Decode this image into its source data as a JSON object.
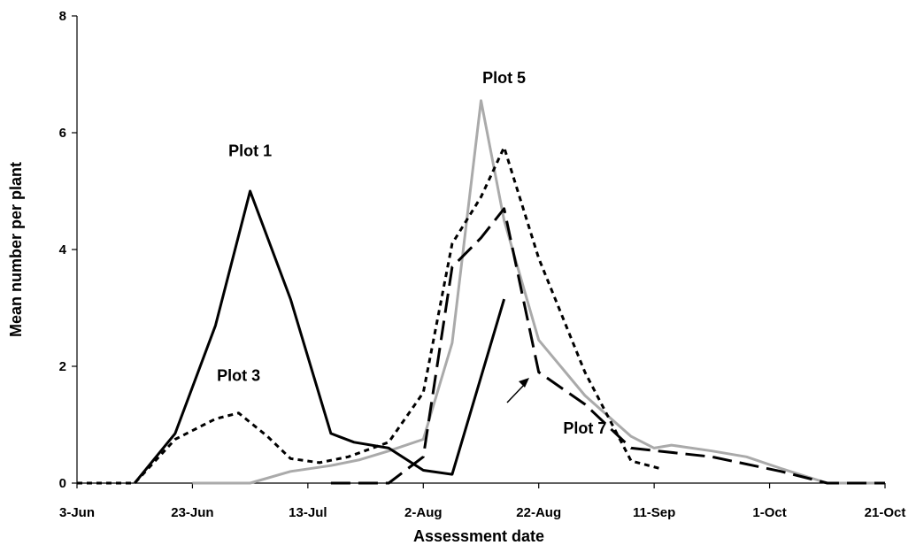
{
  "chart_data": {
    "type": "line",
    "title": "",
    "xlabel": "Assessment date",
    "ylabel": "Mean number per plant",
    "x_ticks": [
      "3-Jun",
      "23-Jun",
      "13-Jul",
      "2-Aug",
      "22-Aug",
      "11-Sep",
      "1-Oct",
      "21-Oct"
    ],
    "x_tick_days": [
      0,
      20,
      40,
      60,
      80,
      100,
      120,
      140
    ],
    "xlim_days": [
      0,
      140
    ],
    "x_origin": "3-Jun",
    "y_ticks": [
      "0",
      "2",
      "4",
      "6",
      "8"
    ],
    "ylim": [
      0,
      8
    ],
    "grid": false,
    "legend": "none",
    "series": [
      {
        "name": "Plot 1",
        "color": "#000000",
        "style": "solid",
        "x": [
          "13-Jun",
          "20-Jun",
          "27-Jun",
          "3-Jul",
          "10-Jul",
          "17-Jul",
          "21-Jul",
          "27-Jul",
          "2-Aug",
          "7-Aug",
          "16-Aug"
        ],
        "y": [
          0,
          0.85,
          2.7,
          5.0,
          3.15,
          0.85,
          0.7,
          0.6,
          0.22,
          0.15,
          3.15
        ]
      },
      {
        "name": "Plot 3",
        "color": "#000000",
        "style": "dotted",
        "x": [
          "3-Jun",
          "10-Jun",
          "13-Jun",
          "20-Jun",
          "27-Jun",
          "1-Jul",
          "6-Jul",
          "10-Jul",
          "15-Jul",
          "20-Jul",
          "27-Jul",
          "2-Aug",
          "7-Aug",
          "12-Aug",
          "16-Aug",
          "22-Aug",
          "30-Aug",
          "7-Sep",
          "12-Sep"
        ],
        "y": [
          0,
          0,
          0,
          0.75,
          1.1,
          1.2,
          0.8,
          0.42,
          0.35,
          0.45,
          0.7,
          1.55,
          4.1,
          4.9,
          5.75,
          3.85,
          1.9,
          0.38,
          0.25
        ]
      },
      {
        "name": "Plot 5",
        "color": "#aaaaaa",
        "style": "solid",
        "x": [
          "23-Jun",
          "3-Jul",
          "10-Jul",
          "17-Jul",
          "22-Jul",
          "27-Jul",
          "2-Aug",
          "7-Aug",
          "12-Aug",
          "16-Aug",
          "22-Aug",
          "30-Aug",
          "7-Sep",
          "11-Sep",
          "14-Sep",
          "21-Sep",
          "27-Sep",
          "3-Oct",
          "11-Oct",
          "21-Oct"
        ],
        "y": [
          0,
          0,
          0.2,
          0.3,
          0.4,
          0.55,
          0.75,
          2.4,
          6.55,
          4.5,
          2.45,
          1.5,
          0.8,
          0.6,
          0.65,
          0.55,
          0.45,
          0.25,
          0,
          0
        ]
      },
      {
        "name": "Plot 7",
        "color": "#000000",
        "style": "dashed",
        "x": [
          "17-Jul",
          "27-Jul",
          "2-Aug",
          "7-Aug",
          "12-Aug",
          "16-Aug",
          "22-Aug",
          "30-Aug",
          "7-Sep",
          "21-Sep",
          "3-Oct",
          "11-Oct",
          "21-Oct"
        ],
        "y": [
          0,
          0,
          0.45,
          3.7,
          4.2,
          4.7,
          1.9,
          1.35,
          0.6,
          0.45,
          0.2,
          0,
          0
        ]
      }
    ],
    "annotations": [
      {
        "text": "Plot 1",
        "x": "3-Jul",
        "y": 5.6
      },
      {
        "text": "Plot 3",
        "x": "1-Jul",
        "y": 1.75
      },
      {
        "text": "Plot 5",
        "x": "16-Aug",
        "y": 6.85
      },
      {
        "text": "Plot 7",
        "x": "30-Aug",
        "y": 0.85
      }
    ]
  }
}
